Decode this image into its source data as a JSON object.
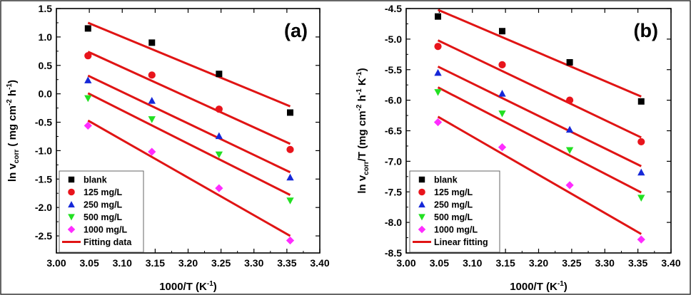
{
  "chart_data": [
    {
      "type": "scatter",
      "panel_label": "(a)",
      "xlabel": "1000/T (K",
      "xlabel_sup": "-1",
      "xlabel_tail": ")",
      "ylabel_parts": {
        "main": "ln v",
        "sub": "corr",
        "unit_open": " ( mg cm",
        "sup1": "-2",
        "unit_mid": " h",
        "sup2": "-1",
        "unit_close": ")"
      },
      "xlim": [
        3.0,
        3.4
      ],
      "ylim": [
        -2.8,
        1.5
      ],
      "xticks": [
        3.0,
        3.05,
        3.1,
        3.15,
        3.2,
        3.25,
        3.3,
        3.35,
        3.4
      ],
      "xtick_labels": [
        "3.00",
        "3.05",
        "3.10",
        "3.15",
        "3.20",
        "3.25",
        "3.30",
        "3.35",
        "3.40"
      ],
      "yticks": [
        1.5,
        1.0,
        0.5,
        0.0,
        -0.5,
        -1.0,
        -1.5,
        -2.0,
        -2.5
      ],
      "ytick_labels": [
        "1.5",
        "1.0",
        "0.5",
        "0.0",
        "-0.5",
        "-1.0",
        "-1.5",
        "-2.0",
        "-2.5"
      ],
      "x": [
        3.048,
        3.145,
        3.247,
        3.355
      ],
      "series": [
        {
          "name": "blank",
          "marker": "square",
          "color": "#000000",
          "values": [
            1.15,
            0.9,
            0.35,
            -0.33
          ],
          "fit": [
            1.25,
            -0.22
          ]
        },
        {
          "name": "125   mg/L",
          "marker": "circle",
          "color": "#e8141c",
          "values": [
            0.67,
            0.33,
            -0.27,
            -0.98
          ],
          "fit": [
            0.74,
            -0.88
          ]
        },
        {
          "name": "250   mg/L",
          "marker": "triangle-up",
          "color": "#1628d8",
          "values": [
            0.24,
            -0.12,
            -0.74,
            -1.47
          ],
          "fit": [
            0.32,
            -1.38
          ]
        },
        {
          "name": "500   mg/L",
          "marker": "triangle-down",
          "color": "#22e022",
          "values": [
            -0.08,
            -0.45,
            -1.07,
            -1.88
          ],
          "fit": [
            0.01,
            -1.78
          ]
        },
        {
          "name": "1000 mg/L",
          "marker": "diamond",
          "color": "#ff2cff",
          "values": [
            -0.56,
            -1.02,
            -1.66,
            -2.58
          ],
          "fit": [
            -0.47,
            -2.5
          ]
        }
      ],
      "fit_color": "#e01414",
      "fit_label": "Fitting data",
      "legend_position": "bottom-left"
    },
    {
      "type": "scatter",
      "panel_label": "(b)",
      "xlabel": "1000/T (K",
      "xlabel_sup": "-1",
      "xlabel_tail": ")",
      "ylabel_parts": {
        "main": "ln v",
        "sub": "corr",
        "unit_open": "/T (mg cm",
        "sup1": "-2",
        "unit_mid": " h",
        "sup2": "-1",
        "unit_mid2": " K",
        "sup3": "-1",
        "unit_close": ")"
      },
      "xlim": [
        3.0,
        3.4
      ],
      "ylim": [
        -8.5,
        -4.5
      ],
      "xticks": [
        3.0,
        3.05,
        3.1,
        3.15,
        3.2,
        3.25,
        3.3,
        3.35,
        3.4
      ],
      "xtick_labels": [
        "3.00",
        "3.05",
        "3.10",
        "3.15",
        "3.20",
        "3.25",
        "3.30",
        "3.35",
        "3.40"
      ],
      "yticks": [
        -4.5,
        -5.0,
        -5.5,
        -6.0,
        -6.5,
        -7.0,
        -7.5,
        -8.0,
        -8.5
      ],
      "ytick_labels": [
        "-4.5",
        "-5.0",
        "-5.5",
        "-6.0",
        "-6.5",
        "-7.0",
        "-7.5",
        "-8.0",
        "-8.5"
      ],
      "x": [
        3.048,
        3.145,
        3.247,
        3.355
      ],
      "series": [
        {
          "name": "blank",
          "marker": "square",
          "color": "#000000",
          "values": [
            -4.63,
            -4.87,
            -5.38,
            -6.02
          ],
          "fit": [
            -4.52,
            -5.94
          ]
        },
        {
          "name": "125   mg/L",
          "marker": "circle",
          "color": "#e8141c",
          "values": [
            -5.12,
            -5.42,
            -6.0,
            -6.68
          ],
          "fit": [
            -5.02,
            -6.61
          ]
        },
        {
          "name": "250   mg/L",
          "marker": "triangle-up",
          "color": "#1628d8",
          "values": [
            -5.55,
            -5.89,
            -6.48,
            -7.18
          ],
          "fit": [
            -5.45,
            -7.08
          ]
        },
        {
          "name": "500   mg/L",
          "marker": "triangle-down",
          "color": "#22e022",
          "values": [
            -5.87,
            -6.22,
            -6.82,
            -7.6
          ],
          "fit": [
            -5.79,
            -7.51
          ]
        },
        {
          "name": "1000 mg/L",
          "marker": "diamond",
          "color": "#ff2cff",
          "values": [
            -6.36,
            -6.77,
            -7.39,
            -8.28
          ],
          "fit": [
            -6.27,
            -8.19
          ]
        }
      ],
      "fit_color": "#e01414",
      "fit_label": "Linear fitting",
      "legend_position": "bottom-left"
    }
  ]
}
